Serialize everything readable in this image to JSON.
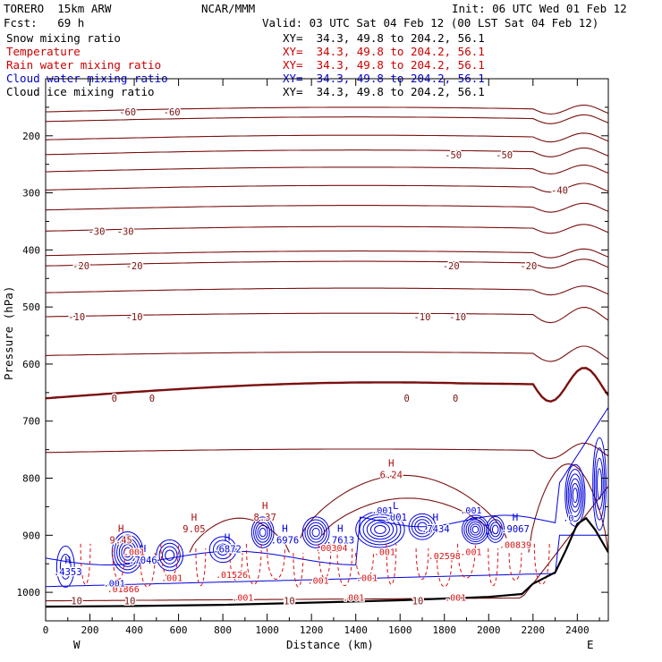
{
  "header": {
    "model": "TORERO  15km ARW",
    "center": "NCAR/MMM",
    "init": "Init: 06 UTC Wed 01 Feb 12",
    "fcst": "Fcst:   69 h",
    "valid": "Valid: 03 UTC Sat 04 Feb 12 (00 LST Sat 04 Feb 12)"
  },
  "legend": [
    {
      "name": "Snow mixing ratio",
      "xy": "XY=  34.3, 49.8 to 204.2, 56.1",
      "color": "#000000"
    },
    {
      "name": "Temperature",
      "xy": "XY=  34.3, 49.8 to 204.2, 56.1",
      "color": "#cc0000"
    },
    {
      "name": "Rain water mixing ratio",
      "xy": "XY=  34.3, 49.8 to 204.2, 56.1",
      "color": "#cc0000"
    },
    {
      "name": "Cloud water mixing ratio",
      "xy": "XY=  34.3, 49.8 to 204.2, 56.1",
      "color": "#0000cc"
    },
    {
      "name": "Cloud ice mixing ratio",
      "xy": "XY=  34.3, 49.8 to 204.2, 56.1",
      "color": "#000000"
    }
  ],
  "colors": {
    "temperature": "#7a1010",
    "rain": "#dd1111",
    "cloud_water": "#0000dd",
    "terrain": "#000000",
    "axis": "#000000"
  },
  "chart_data": {
    "type": "cross-section contour",
    "xlabel": "Distance (km)",
    "ylabel": "Pressure (hPa)",
    "xlim": [
      0,
      2540
    ],
    "ylim": [
      1050,
      100
    ],
    "x_ticks": [
      "0",
      "200",
      "400",
      "600",
      "800",
      "1000",
      "1200",
      "1400",
      "1600",
      "1800",
      "2000",
      "2200",
      "2400"
    ],
    "y_ticks": [
      "200",
      "300",
      "400",
      "500",
      "600",
      "700",
      "800",
      "900",
      "1000"
    ],
    "end_labels": {
      "left": "W",
      "right": "E"
    },
    "temperature_isotherms": [
      {
        "value": -65,
        "p": 175,
        "labels": []
      },
      {
        "value": -60,
        "p": 158,
        "labels": [
          {
            "text": "-60",
            "x": 370
          },
          {
            "text": "-60",
            "x": 570
          }
        ]
      },
      {
        "value": -55,
        "p": 207,
        "labels": []
      },
      {
        "value": -50,
        "p": 233,
        "labels": [
          {
            "text": "-50",
            "x": 1840
          },
          {
            "text": "-50",
            "x": 2070
          }
        ]
      },
      {
        "value": -45,
        "p": 263,
        "labels": []
      },
      {
        "value": -40,
        "p": 295,
        "labels": [
          {
            "text": "-40",
            "x": 2320
          }
        ]
      },
      {
        "value": -35,
        "p": 330,
        "labels": []
      },
      {
        "value": -30,
        "p": 367,
        "labels": [
          {
            "text": "-30",
            "x": 230
          },
          {
            "text": "-30",
            "x": 360
          }
        ]
      },
      {
        "value": -25,
        "p": 410,
        "labels": []
      },
      {
        "value": -20,
        "p": 428,
        "labels": [
          {
            "text": "-20",
            "x": 160
          },
          {
            "text": "-20",
            "x": 400
          },
          {
            "text": "-20",
            "x": 1830
          },
          {
            "text": "-20",
            "x": 2180
          }
        ]
      },
      {
        "value": -15,
        "p": 475,
        "labels": []
      },
      {
        "value": -10,
        "p": 517,
        "labels": [
          {
            "text": "-10",
            "x": 140
          },
          {
            "text": "-10",
            "x": 400
          },
          {
            "text": "-10",
            "x": 1700
          },
          {
            "text": "-10",
            "x": 1860
          }
        ]
      },
      {
        "value": -5,
        "p": 585,
        "labels": []
      },
      {
        "value": 0,
        "p": 660,
        "labels": [
          {
            "text": "0",
            "x": 310
          },
          {
            "text": "0",
            "x": 480
          },
          {
            "text": "0",
            "x": 1630
          },
          {
            "text": "0",
            "x": 1850
          }
        ],
        "bold": true
      },
      {
        "value": 5,
        "p": 755,
        "labels": []
      },
      {
        "value": 10,
        "p": 1015,
        "labels": [
          {
            "text": "10",
            "x": 140
          },
          {
            "text": "10",
            "x": 380
          },
          {
            "text": "10",
            "x": 1100
          },
          {
            "text": "10",
            "x": 1680
          }
        ]
      }
    ],
    "highs_lows": [
      {
        "mark": "H",
        "value": "6.24",
        "x": 1560,
        "p": 795
      },
      {
        "mark": "H",
        "value": "8.37",
        "x": 990,
        "p": 870
      },
      {
        "mark": "H",
        "value": "9.05",
        "x": 670,
        "p": 890
      },
      {
        "mark": "H",
        "value": "9.45",
        "x": 340,
        "p": 910
      },
      {
        "mark": "H",
        "value": ".4353",
        "x": 100,
        "p": 965
      },
      {
        "mark": "H",
        "value": ".7046",
        "x": 440,
        "p": 945
      },
      {
        "mark": "H",
        "value": ".6872",
        "x": 820,
        "p": 925
      },
      {
        "mark": "H",
        "value": ".6976",
        "x": 1080,
        "p": 910
      },
      {
        "mark": "H",
        "value": ".7613",
        "x": 1330,
        "p": 910
      },
      {
        "mark": "H",
        "value": ".7434",
        "x": 1760,
        "p": 890
      },
      {
        "mark": "L",
        "value": ".001",
        "x": 1580,
        "p": 870
      },
      {
        "mark": "H",
        "value": ".9067",
        "x": 2120,
        "p": 890
      }
    ],
    "field_labels": [
      {
        "text": ".001",
        "x": 400,
        "p": 935,
        "color": "red"
      },
      {
        "text": ".001",
        "x": 570,
        "p": 980,
        "color": "red"
      },
      {
        "text": ".01866",
        "x": 350,
        "p": 1000,
        "color": "red"
      },
      {
        "text": ".001",
        "x": 310,
        "p": 990,
        "color": "blue"
      },
      {
        "text": ".01526",
        "x": 840,
        "p": 975,
        "color": "red"
      },
      {
        "text": ".001",
        "x": 890,
        "p": 1015,
        "color": "red"
      },
      {
        "text": ".00304",
        "x": 1290,
        "p": 928,
        "color": "red"
      },
      {
        "text": ".001",
        "x": 1390,
        "p": 1015,
        "color": "red"
      },
      {
        "text": ".001",
        "x": 1450,
        "p": 980,
        "color": "red"
      },
      {
        "text": ".001",
        "x": 1530,
        "p": 935,
        "color": "red"
      },
      {
        "text": ".02598",
        "x": 1800,
        "p": 942,
        "color": "red"
      },
      {
        "text": ".001",
        "x": 1920,
        "p": 935,
        "color": "red"
      },
      {
        "text": ".001",
        "x": 1850,
        "p": 1015,
        "color": "red"
      },
      {
        "text": ".001",
        "x": 1920,
        "p": 862,
        "color": "blue"
      },
      {
        "text": ".001",
        "x": 1520,
        "p": 862,
        "color": "blue"
      },
      {
        "text": ".00839",
        "x": 2120,
        "p": 922,
        "color": "red"
      },
      {
        "text": ".0 ",
        "x": 2360,
        "p": 875,
        "color": "blue"
      },
      {
        "text": ".001",
        "x": 1230,
        "p": 985,
        "color": "red"
      }
    ],
    "terrain": [
      {
        "x": 0,
        "p": 1025
      },
      {
        "x": 400,
        "p": 1024
      },
      {
        "x": 800,
        "p": 1022
      },
      {
        "x": 1200,
        "p": 1018
      },
      {
        "x": 1600,
        "p": 1014
      },
      {
        "x": 2000,
        "p": 1008
      },
      {
        "x": 2150,
        "p": 1003
      },
      {
        "x": 2200,
        "p": 985
      },
      {
        "x": 2250,
        "p": 975
      },
      {
        "x": 2300,
        "p": 965
      },
      {
        "x": 2350,
        "p": 925
      },
      {
        "x": 2400,
        "p": 880
      },
      {
        "x": 2440,
        "p": 870
      },
      {
        "x": 2480,
        "p": 890
      },
      {
        "x": 2540,
        "p": 930
      }
    ]
  }
}
